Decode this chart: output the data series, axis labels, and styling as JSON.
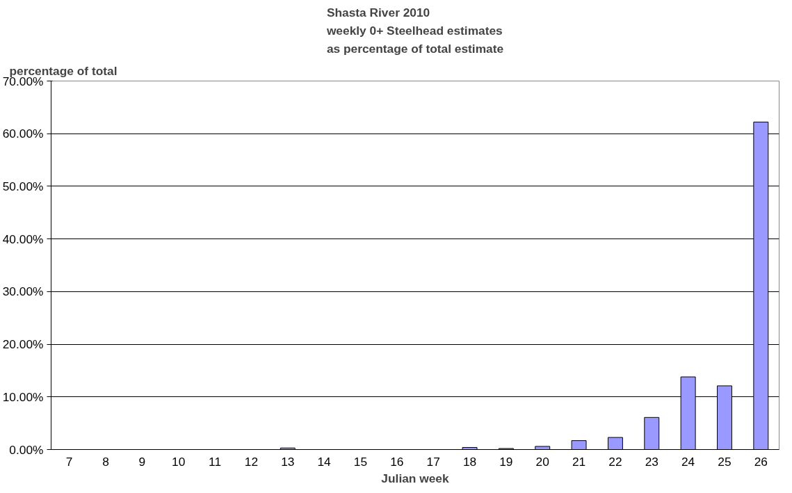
{
  "chart_data": {
    "type": "bar",
    "title": "Shasta River 2010\nweekly 0+ Steelhead estimates\nas percentage of total estimate",
    "xlabel": "Julian week",
    "ylabel": "percentage of total",
    "categories": [
      "7",
      "8",
      "9",
      "10",
      "11",
      "12",
      "13",
      "14",
      "15",
      "16",
      "17",
      "18",
      "19",
      "20",
      "21",
      "22",
      "23",
      "24",
      "25",
      "26"
    ],
    "values": [
      0,
      0,
      0,
      0,
      0,
      0,
      0.3,
      0,
      0,
      0,
      0,
      0.4,
      0.2,
      0.6,
      1.7,
      2.3,
      6.1,
      13.8,
      12.1,
      62.2
    ],
    "color": "#9999ff",
    "ylim": [
      0,
      70
    ],
    "yticks": [
      {
        "value": 0,
        "label": "0.00%"
      },
      {
        "value": 10,
        "label": "10.00%"
      },
      {
        "value": 20,
        "label": "20.00%"
      },
      {
        "value": 30,
        "label": "30.00%"
      },
      {
        "value": 40,
        "label": "40.00%"
      },
      {
        "value": 50,
        "label": "50.00%"
      },
      {
        "value": 60,
        "label": "60.00%"
      },
      {
        "value": 70,
        "label": "70.00%"
      }
    ],
    "grid": "y"
  }
}
